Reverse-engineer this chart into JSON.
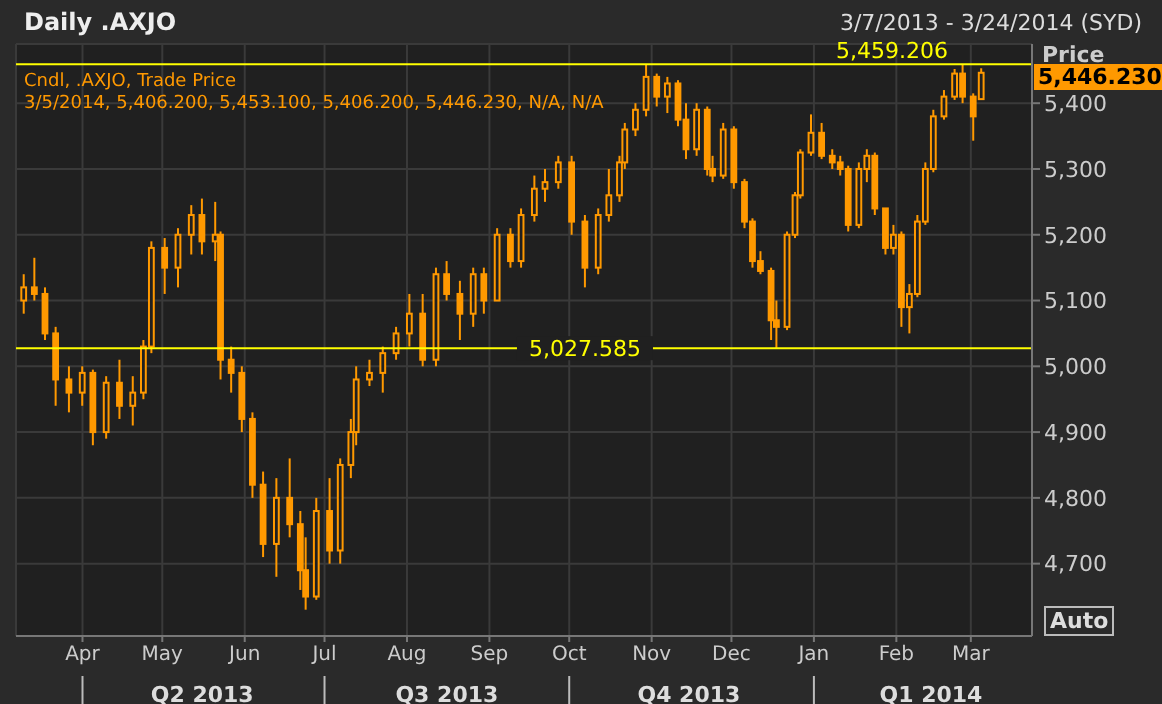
{
  "chart_data": {
    "type": "candlestick",
    "title": "Daily .AXJO",
    "subtitle": "3/7/2013 - 3/24/2014 (SYD)",
    "ylabel": "Price AUD",
    "annotations": [
      "Cndl, .AXJO, Trade Price",
      "3/5/2014, 5,406.200, 5,453.100, 5,406.200, 5,446.230, N/A, N/A",
      "5,446.230",
      "Auto"
    ],
    "x": [
      "2013-03-10",
      "2013-03-14",
      "2013-03-18",
      "2013-03-22",
      "2013-03-27",
      "2013-04-01",
      "2013-04-05",
      "2013-04-10",
      "2013-04-15",
      "2013-04-20",
      "2013-04-24",
      "2013-04-27",
      "2013-05-02",
      "2013-05-07",
      "2013-05-12",
      "2013-05-16",
      "2013-05-21",
      "2013-05-23",
      "2013-05-27",
      "2013-05-31",
      "2013-06-04",
      "2013-06-08",
      "2013-06-13",
      "2013-06-18",
      "2013-06-22",
      "2013-06-24",
      "2013-06-28",
      "2013-07-03",
      "2013-07-07",
      "2013-07-11",
      "2013-07-13",
      "2013-07-18",
      "2013-07-23",
      "2013-07-28",
      "2013-08-02",
      "2013-08-07",
      "2013-08-12",
      "2013-08-16",
      "2013-08-21",
      "2013-08-26",
      "2013-08-30",
      "2013-09-04",
      "2013-09-09",
      "2013-09-13",
      "2013-09-18",
      "2013-09-22",
      "2013-09-27",
      "2013-10-02",
      "2013-10-07",
      "2013-10-12",
      "2013-10-16",
      "2013-10-20",
      "2013-10-22",
      "2013-10-26",
      "2013-10-30",
      "2013-11-03",
      "2013-11-07",
      "2013-11-11",
      "2013-11-14",
      "2013-11-18",
      "2013-11-22",
      "2013-11-24",
      "2013-11-28",
      "2013-12-02",
      "2013-12-06",
      "2013-12-09",
      "2013-12-12",
      "2013-12-16",
      "2013-12-18",
      "2013-12-22",
      "2013-12-25",
      "2013-12-27",
      "2013-12-31",
      "2014-01-04",
      "2014-01-08",
      "2014-01-11",
      "2014-01-14",
      "2014-01-18",
      "2014-01-21",
      "2014-01-24",
      "2014-01-28",
      "2014-01-31",
      "2014-02-03",
      "2014-02-06",
      "2014-02-09",
      "2014-02-12",
      "2014-02-15",
      "2014-02-19",
      "2014-02-23",
      "2014-02-26",
      "2014-03-02",
      "2014-03-05"
    ],
    "ohlc": [
      [
        5100,
        5140,
        5080,
        5120
      ],
      [
        5120,
        5165,
        5100,
        5110
      ],
      [
        5110,
        5120,
        5040,
        5050
      ],
      [
        5050,
        5060,
        4940,
        4980
      ],
      [
        4980,
        5000,
        4930,
        4960
      ],
      [
        4960,
        5000,
        4940,
        4990
      ],
      [
        4990,
        4995,
        4880,
        4900
      ],
      [
        4900,
        4985,
        4890,
        4975
      ],
      [
        4975,
        5010,
        4920,
        4940
      ],
      [
        4940,
        4985,
        4910,
        4960
      ],
      [
        4960,
        5040,
        4950,
        5030
      ],
      [
        5030,
        5190,
        5020,
        5180
      ],
      [
        5180,
        5195,
        5110,
        5150
      ],
      [
        5150,
        5210,
        5120,
        5200
      ],
      [
        5200,
        5245,
        5170,
        5230
      ],
      [
        5230,
        5255,
        5170,
        5190
      ],
      [
        5190,
        5250,
        5160,
        5200
      ],
      [
        5200,
        5205,
        4980,
        5010
      ],
      [
        5010,
        5030,
        4960,
        4990
      ],
      [
        4990,
        5000,
        4900,
        4920
      ],
      [
        4920,
        4930,
        4800,
        4820
      ],
      [
        4820,
        4840,
        4710,
        4730
      ],
      [
        4730,
        4830,
        4680,
        4800
      ],
      [
        4800,
        4860,
        4740,
        4760
      ],
      [
        4760,
        4780,
        4660,
        4690
      ],
      [
        4690,
        4740,
        4630,
        4650
      ],
      [
        4650,
        4800,
        4645,
        4780
      ],
      [
        4780,
        4830,
        4700,
        4720
      ],
      [
        4720,
        4860,
        4700,
        4850
      ],
      [
        4850,
        4920,
        4830,
        4900
      ],
      [
        4900,
        5000,
        4880,
        4980
      ],
      [
        4980,
        5010,
        4970,
        4990
      ],
      [
        4990,
        5030,
        4960,
        5020
      ],
      [
        5020,
        5060,
        5010,
        5050
      ],
      [
        5050,
        5110,
        5030,
        5080
      ],
      [
        5080,
        5110,
        5000,
        5010
      ],
      [
        5010,
        5150,
        5000,
        5140
      ],
      [
        5140,
        5160,
        5100,
        5110
      ],
      [
        5110,
        5130,
        5040,
        5080
      ],
      [
        5080,
        5150,
        5060,
        5140
      ],
      [
        5140,
        5150,
        5080,
        5100
      ],
      [
        5100,
        5210,
        5100,
        5200
      ],
      [
        5200,
        5210,
        5150,
        5160
      ],
      [
        5160,
        5240,
        5150,
        5230
      ],
      [
        5230,
        5290,
        5220,
        5270
      ],
      [
        5270,
        5300,
        5250,
        5280
      ],
      [
        5280,
        5320,
        5270,
        5310
      ],
      [
        5310,
        5320,
        5200,
        5220
      ],
      [
        5220,
        5230,
        5120,
        5150
      ],
      [
        5150,
        5240,
        5140,
        5230
      ],
      [
        5230,
        5300,
        5220,
        5260
      ],
      [
        5260,
        5320,
        5250,
        5310
      ],
      [
        5310,
        5370,
        5300,
        5360
      ],
      [
        5360,
        5400,
        5350,
        5390
      ],
      [
        5390,
        5459,
        5380,
        5440
      ],
      [
        5440,
        5445,
        5395,
        5410
      ],
      [
        5410,
        5440,
        5385,
        5430
      ],
      [
        5430,
        5435,
        5365,
        5375
      ],
      [
        5375,
        5400,
        5315,
        5330
      ],
      [
        5330,
        5400,
        5320,
        5390
      ],
      [
        5390,
        5395,
        5290,
        5300
      ],
      [
        5300,
        5320,
        5280,
        5290
      ],
      [
        5290,
        5370,
        5285,
        5360
      ],
      [
        5360,
        5365,
        5270,
        5280
      ],
      [
        5280,
        5285,
        5210,
        5220
      ],
      [
        5220,
        5225,
        5150,
        5160
      ],
      [
        5160,
        5175,
        5140,
        5145
      ],
      [
        5145,
        5150,
        5040,
        5070
      ],
      [
        5070,
        5100,
        5028,
        5060
      ],
      [
        5060,
        5205,
        5055,
        5200
      ],
      [
        5200,
        5265,
        5195,
        5260
      ],
      [
        5260,
        5330,
        5255,
        5325
      ],
      [
        5325,
        5383,
        5320,
        5355
      ],
      [
        5355,
        5370,
        5315,
        5320
      ],
      [
        5320,
        5330,
        5300,
        5310
      ],
      [
        5310,
        5320,
        5290,
        5300
      ],
      [
        5300,
        5305,
        5205,
        5215
      ],
      [
        5215,
        5310,
        5210,
        5300
      ],
      [
        5300,
        5330,
        5280,
        5320
      ],
      [
        5320,
        5325,
        5230,
        5240
      ],
      [
        5240,
        5240,
        5170,
        5180
      ],
      [
        5180,
        5215,
        5170,
        5200
      ],
      [
        5200,
        5205,
        5060,
        5090
      ],
      [
        5090,
        5125,
        5050,
        5110
      ],
      [
        5110,
        5230,
        5105,
        5220
      ],
      [
        5220,
        5310,
        5215,
        5300
      ],
      [
        5300,
        5390,
        5295,
        5380
      ],
      [
        5380,
        5420,
        5375,
        5410
      ],
      [
        5410,
        5452,
        5405,
        5445
      ],
      [
        5445,
        5459,
        5400,
        5410
      ],
      [
        5410,
        5415,
        5343,
        5380
      ],
      [
        5406.2,
        5453.1,
        5406.2,
        5446.23
      ]
    ],
    "color": "#ff9900",
    "xlim": [
      "2013-03-07",
      "2014-03-24"
    ],
    "xticks": [
      {
        "value": "2013-04-01",
        "label": "Apr"
      },
      {
        "value": "2013-05-01",
        "label": "May"
      },
      {
        "value": "2013-06-01",
        "label": "Jun"
      },
      {
        "value": "2013-07-01",
        "label": "Jul"
      },
      {
        "value": "2013-08-01",
        "label": "Aug"
      },
      {
        "value": "2013-09-01",
        "label": "Sep"
      },
      {
        "value": "2013-10-01",
        "label": "Oct"
      },
      {
        "value": "2013-11-01",
        "label": "Nov"
      },
      {
        "value": "2013-12-01",
        "label": "Dec"
      },
      {
        "value": "2014-01-01",
        "label": "Jan"
      },
      {
        "value": "2014-02-01",
        "label": "Feb"
      },
      {
        "value": "2014-03-01",
        "label": "Mar"
      }
    ],
    "x2lim": [
      "2013-03-07",
      "2014-03-24"
    ],
    "x2ticks": [
      {
        "value": "2013-04-01",
        "label": null
      },
      {
        "value": "2013-05-16",
        "label": "Q2 2013"
      },
      {
        "value": "2013-07-01",
        "label": null
      },
      {
        "value": "2013-08-16",
        "label": "Q3 2013"
      },
      {
        "value": "2013-10-01",
        "label": null
      },
      {
        "value": "2013-11-15",
        "label": "Q4 2013"
      },
      {
        "value": "2014-01-01",
        "label": null
      },
      {
        "value": "2014-02-14",
        "label": "Q1 2014"
      }
    ],
    "ylim": [
      4590,
      5490
    ],
    "yticks": [
      {
        "value": 4700,
        "label": "4,700"
      },
      {
        "value": 4800,
        "label": "4,800"
      },
      {
        "value": 4900,
        "label": "4,900"
      },
      {
        "value": 5000,
        "label": "5,000"
      },
      {
        "value": 5100,
        "label": "5,100"
      },
      {
        "value": 5200,
        "label": "5,200"
      },
      {
        "value": 5300,
        "label": "5,300"
      },
      {
        "value": 5400,
        "label": "5,400"
      }
    ],
    "ref_lines": [
      {
        "axis": "y",
        "value": 5459.206,
        "label": "5,459.206",
        "color": "#ffff00"
      },
      {
        "axis": "y",
        "value": 5027.585,
        "label": "5,027.585",
        "color": "#ffff00"
      }
    ],
    "grid": true
  }
}
